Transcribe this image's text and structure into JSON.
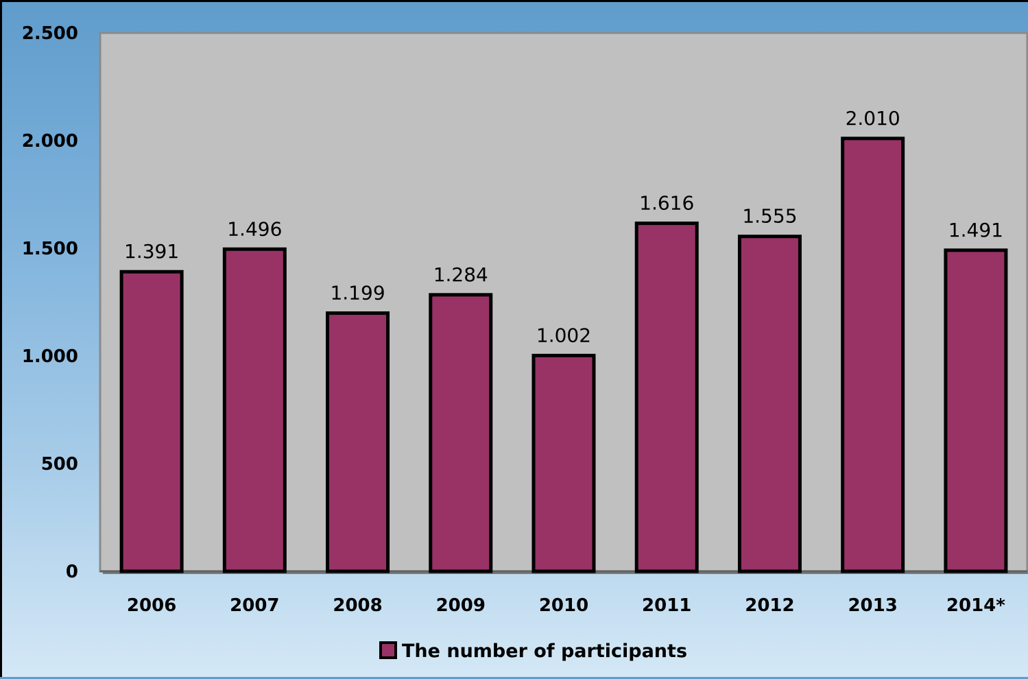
{
  "chart_data": {
    "type": "bar",
    "categories": [
      "2006",
      "2007",
      "2008",
      "2009",
      "2010",
      "2011",
      "2012",
      "2013",
      "2014*"
    ],
    "series": [
      {
        "name": "The number of participants",
        "values": [
          1391,
          1496,
          1199,
          1284,
          1002,
          1616,
          1555,
          2010,
          1491
        ],
        "labels": [
          "1.391",
          "1.496",
          "1.199",
          "1.284",
          "1.002",
          "1.616",
          "1.555",
          "2.010",
          "1.491"
        ],
        "color": "#993366"
      }
    ],
    "y_ticks": [
      {
        "value": 0,
        "label": "0"
      },
      {
        "value": 500,
        "label": "500"
      },
      {
        "value": 1000,
        "label": "1.000"
      },
      {
        "value": 1500,
        "label": "1.500"
      },
      {
        "value": 2000,
        "label": "2.000"
      },
      {
        "value": 2500,
        "label": "2.500"
      }
    ],
    "ylim": [
      0,
      2500
    ],
    "title": "",
    "xlabel": "",
    "ylabel": "",
    "grid": false,
    "legend_position": "bottom",
    "plot_background": "#c0c0c0",
    "bar_outline": "#000000"
  }
}
